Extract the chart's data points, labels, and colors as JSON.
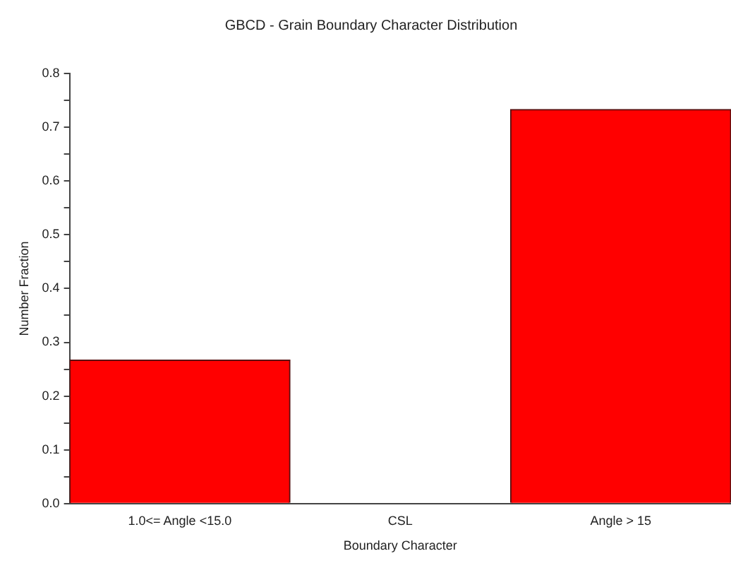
{
  "chart_data": {
    "type": "bar",
    "title": "GBCD - Grain Boundary Character Distribution",
    "xlabel": "Boundary Character",
    "ylabel": "Number Fraction",
    "categories": [
      "1.0<= Angle <15.0",
      "CSL",
      "Angle > 15"
    ],
    "values": [
      0.267,
      0,
      0.733
    ],
    "color": "#ff0000",
    "ylim": [
      0,
      0.8
    ],
    "yticks": [
      "0.0",
      {
        "value": 0.05,
        "label": null
      },
      0.1,
      {
        "value": 0.15,
        "label": null
      },
      0.2,
      {
        "value": 0.25,
        "label": null
      },
      0.3,
      {
        "value": 0.35,
        "label": null
      },
      0.4,
      {
        "value": 0.45,
        "label": null
      },
      0.5,
      {
        "value": 0.55,
        "label": null
      },
      0.6,
      {
        "value": 0.65,
        "label": null
      },
      0.7,
      {
        "value": 0.75,
        "label": null
      },
      0.8
    ],
    "grid": false
  }
}
